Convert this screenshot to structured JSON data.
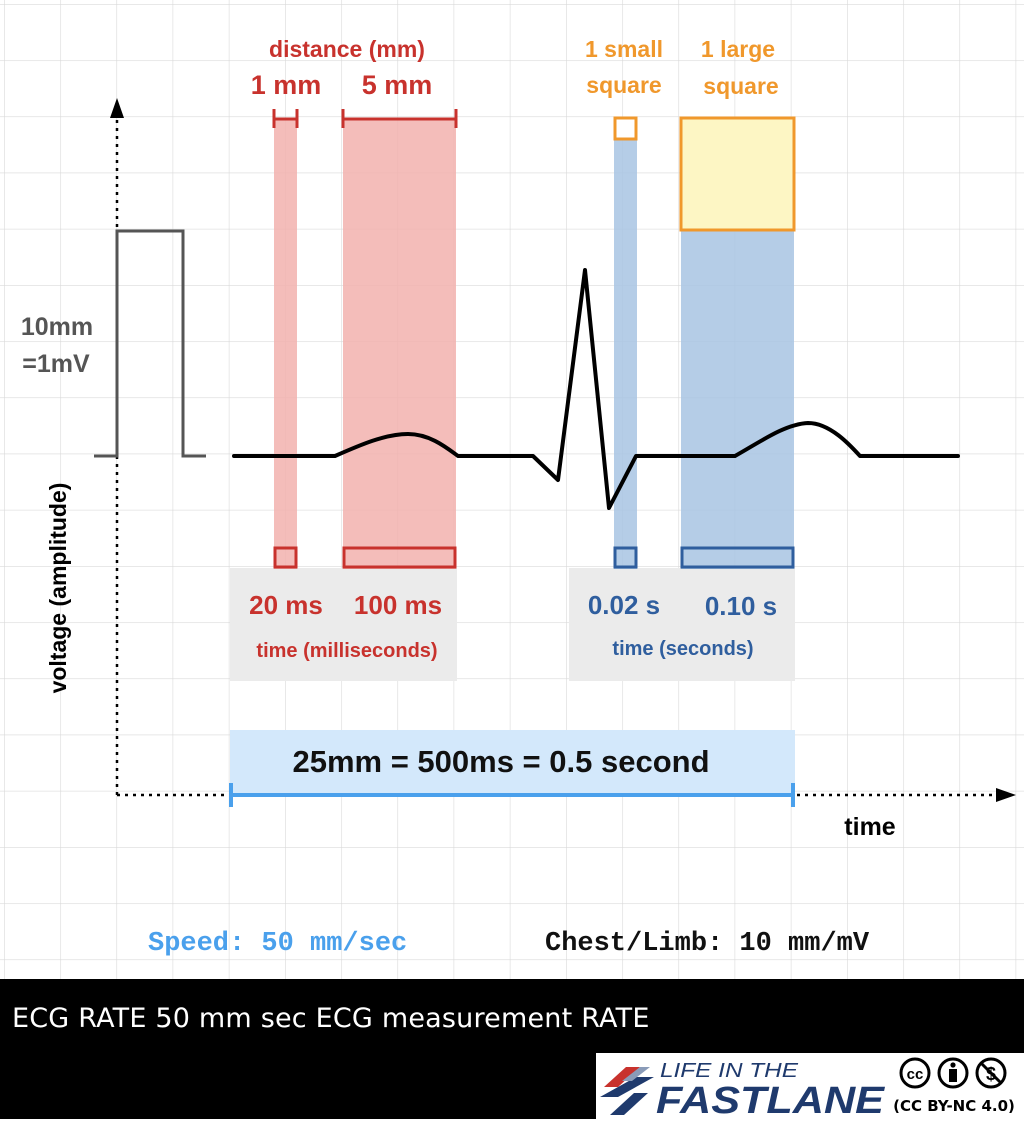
{
  "colors": {
    "red": "#c8322d",
    "red_fill": "#f2b2ae",
    "orange": "#f0982c",
    "yellow_fill": "#fdf6c4",
    "blue_dark": "#2f5e9e",
    "blue_fill": "#a8c4e3",
    "light_blue": "#4aa0ec",
    "light_blue_fill": "#d3e8fb",
    "grid": "#d8d8d8",
    "trace": "#000000",
    "gray_text": "#555555"
  },
  "labels": {
    "distance_title": "distance (mm)",
    "one_mm": "1 mm",
    "five_mm": "5 mm",
    "small_square_line1": "1 small",
    "small_square_line2": "square",
    "large_square_line1": "1 large",
    "large_square_line2": "square",
    "calibration_line1": "10mm",
    "calibration_line2": "=1mV",
    "y_axis": "voltage (amplitude)",
    "x_axis": "time",
    "ms_20": "20 ms",
    "ms_100": "100 ms",
    "time_ms": "time (milliseconds)",
    "s_002": "0.02 s",
    "s_010": "0.10 s",
    "time_s": "time (seconds)",
    "equation": "25mm = 500ms = 0.5 second",
    "speed": "Speed: 50 mm/sec",
    "gain": "Chest/Limb: 10 mm/mV"
  },
  "caption": "ECG RATE 50 mm sec ECG measurement RATE",
  "logo": {
    "line1": "LIFE IN THE",
    "line2": "FASTLANE",
    "license": "(CC BY-NC 4.0)"
  }
}
